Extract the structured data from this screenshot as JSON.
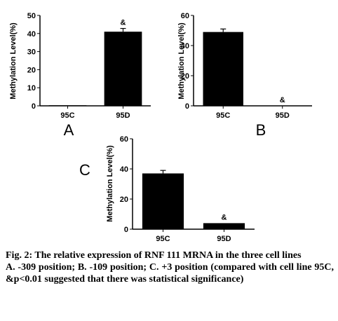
{
  "chart_data": [
    {
      "type": "bar",
      "panel": "A",
      "ylabel": "Methylation Level(%)",
      "ylim": [
        0,
        50
      ],
      "yticks": [
        0,
        10,
        20,
        30,
        40,
        50
      ],
      "categories": [
        "95C",
        "95D"
      ],
      "values": [
        0.3,
        41
      ],
      "errors": [
        0,
        1.8
      ],
      "annotations": [
        "",
        "&"
      ]
    },
    {
      "type": "bar",
      "panel": "B",
      "ylabel": "Methylation Level(%)",
      "ylim": [
        0,
        60
      ],
      "yticks": [
        0,
        20,
        40,
        60
      ],
      "categories": [
        "95C",
        "95D"
      ],
      "values": [
        49,
        0
      ],
      "errors": [
        2,
        0
      ],
      "annotations": [
        "",
        "&"
      ]
    },
    {
      "type": "bar",
      "panel": "C",
      "ylabel": "Methylation Level(%)",
      "ylim": [
        0,
        60
      ],
      "yticks": [
        0,
        20,
        40,
        60
      ],
      "categories": [
        "95C",
        "95D"
      ],
      "values": [
        37,
        4
      ],
      "errors": [
        2,
        0
      ],
      "annotations": [
        "",
        "&"
      ]
    }
  ],
  "caption": {
    "title": "Fig. 2: The relative expression of RNF 111 MRNA in the three cell lines",
    "body": "A. -309 position; B. -109 position; C. +3 position (compared with cell line 95C, &p<0.01 suggested that there was statistical significance)"
  },
  "colors": {
    "bar": "#000000",
    "axis": "#000000",
    "background": "#ffffff"
  }
}
